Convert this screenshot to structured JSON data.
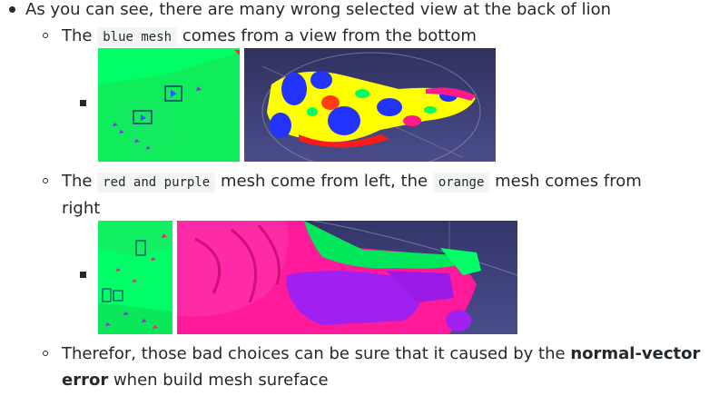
{
  "items": {
    "main": "As you can see, there are many wrong selected view at the back of lion",
    "sub1": {
      "prefix": "The",
      "code": "blue mesh",
      "suffix": "comes from a view from the bottom"
    },
    "sub2": {
      "prefix": "The",
      "code1": "red and purple",
      "middle": "mesh come from left, the",
      "code2": "orange",
      "suffix": "mesh comes from",
      "continuation": "right"
    },
    "sub3": {
      "prefix": "Therefor, those bad choices can be sure that it caused by the",
      "bold1": "normal-vector",
      "bold2": "error",
      "suffix": "when build mesh sureface"
    }
  },
  "images": {
    "img1_label": "camera view projection (blue mesh)",
    "img2_label": "lion mesh from bottom view",
    "img3_label": "camera view projection (left/right)",
    "img4_label": "lion mesh side view"
  },
  "colors": {
    "text": "#24292e",
    "code_bg": "#f3f4f4",
    "green": "#00ff66",
    "navy_bg": "#3d3f74",
    "yellow": "#ffff00",
    "blue": "#2233ff",
    "magenta": "#ff1493",
    "purple": "#a020f0"
  }
}
